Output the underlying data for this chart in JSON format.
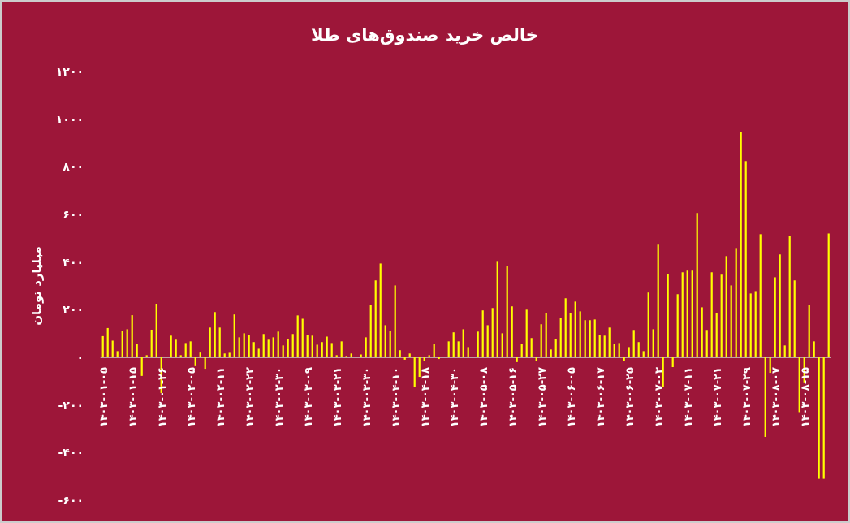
{
  "chart_data": {
    "type": "bar",
    "title": "خالص خرید صندوق‌های طلا",
    "ylabel": "میلیارد تومان",
    "color": "#ffff00",
    "categories": [
      "۱۴۰۳-۰۱-۰۵",
      null,
      null,
      null,
      null,
      null,
      "۱۴۰۳-۰۱-۱۵",
      null,
      null,
      null,
      null,
      null,
      "۱۴۰۳-۰۱-۲۶",
      null,
      null,
      null,
      null,
      null,
      "۱۴۰۳-۰۲-۰۵",
      null,
      null,
      null,
      null,
      null,
      "۱۴۰۳-۰۲-۱۱",
      null,
      null,
      null,
      null,
      null,
      "۱۴۰۳-۰۲-۲۲",
      null,
      null,
      null,
      null,
      null,
      "۱۴۰۳-۰۲-۳۰",
      null,
      null,
      null,
      null,
      null,
      "۱۴۰۳-۰۳-۰۹",
      null,
      null,
      null,
      null,
      null,
      "۱۴۰۳-۰۳-۲۱",
      null,
      null,
      null,
      null,
      null,
      "۱۴۰۳-۰۳-۳۰",
      null,
      null,
      null,
      null,
      null,
      "۱۴۰۳-۰۴-۱۰",
      null,
      null,
      null,
      null,
      null,
      "۱۴۰۳-۰۴-۱۸",
      null,
      null,
      null,
      null,
      null,
      "۱۴۰۳-۰۴-۳۰",
      null,
      null,
      null,
      null,
      null,
      "۱۴۰۳-۰۵-۰۸",
      null,
      null,
      null,
      null,
      null,
      "۱۴۰۳-۰۵-۱۶",
      null,
      null,
      null,
      null,
      null,
      "۱۴۰۳-۰۵-۲۷",
      null,
      null,
      null,
      null,
      null,
      "۱۴۰۳-۰۶-۰۵",
      null,
      null,
      null,
      null,
      null,
      "۱۴۰۳-۰۶-۱۷",
      null,
      null,
      null,
      null,
      null,
      "۱۴۰۳-۰۶-۲۵",
      null,
      null,
      null,
      null,
      null,
      "۱۴۰۳-۰۷-۰۳",
      null,
      null,
      null,
      null,
      null,
      "۱۴۰۳-۰۷-۱۱",
      null,
      null,
      null,
      null,
      null,
      "۱۴۰۳-۰۷-۲۱",
      null,
      null,
      null,
      null,
      null,
      "۱۴۰۳-۰۷-۲۹",
      null,
      null,
      null,
      null,
      null,
      "۱۴۰۳-۰۸-۰۷",
      null,
      null,
      null,
      null,
      null,
      "۱۴۰۳-۰۸-۱۵",
      null,
      null,
      null,
      null,
      null
    ],
    "values": [
      89,
      123,
      70,
      26,
      111,
      118,
      177,
      55,
      -78,
      9,
      116,
      225,
      -150,
      null,
      91,
      74,
      9,
      60,
      67,
      -37,
      20,
      -48,
      125,
      190,
      125,
      16,
      19,
      180,
      84,
      101,
      94,
      64,
      36,
      98,
      74,
      84,
      108,
      50,
      77,
      98,
      176,
      162,
      94,
      91,
      53,
      64,
      87,
      60,
      9,
      67,
      6,
      16,
      null,
      12,
      84,
      220,
      323,
      394,
      135,
      111,
      302,
      30,
      -10,
      16,
      -126,
      -82,
      -14,
      9,
      57,
      -7,
      null,
      67,
      105,
      67,
      118,
      43,
      null,
      108,
      197,
      135,
      207,
      401,
      101,
      384,
      214,
      -20,
      57,
      200,
      81,
      -14,
      139,
      186,
      33,
      77,
      166,
      248,
      186,
      234,
      193,
      156,
      156,
      159,
      94,
      91,
      125,
      57,
      60,
      -14,
      43,
      115,
      64,
      26,
      272,
      118,
      473,
      -123,
      350,
      -41,
      265,
      357,
      364,
      364,
      606,
      210,
      115,
      357,
      186,
      347,
      425,
      302,
      459,
      946,
      824,
      268,
      278,
      517,
      -334,
      -65,
      336,
      432,
      50,
      510,
      323,
      -230,
      -105,
      220,
      67,
      -510,
      -510,
      520
    ],
    "ylim": [
      -600,
      1200
    ],
    "yticks": [
      {
        "value": -600,
        "label": "-۶۰۰"
      },
      {
        "value": -400,
        "label": "-۴۰۰"
      },
      {
        "value": -200,
        "label": "-۲۰۰"
      },
      {
        "value": 0,
        "label": "۰"
      },
      {
        "value": 200,
        "label": "۲۰۰"
      },
      {
        "value": 400,
        "label": "۴۰۰"
      },
      {
        "value": 600,
        "label": "۶۰۰"
      },
      {
        "value": 800,
        "label": "۸۰۰"
      },
      {
        "value": 1000,
        "label": "۱۰۰۰"
      },
      {
        "value": 1200,
        "label": "۱۲۰۰"
      }
    ]
  }
}
